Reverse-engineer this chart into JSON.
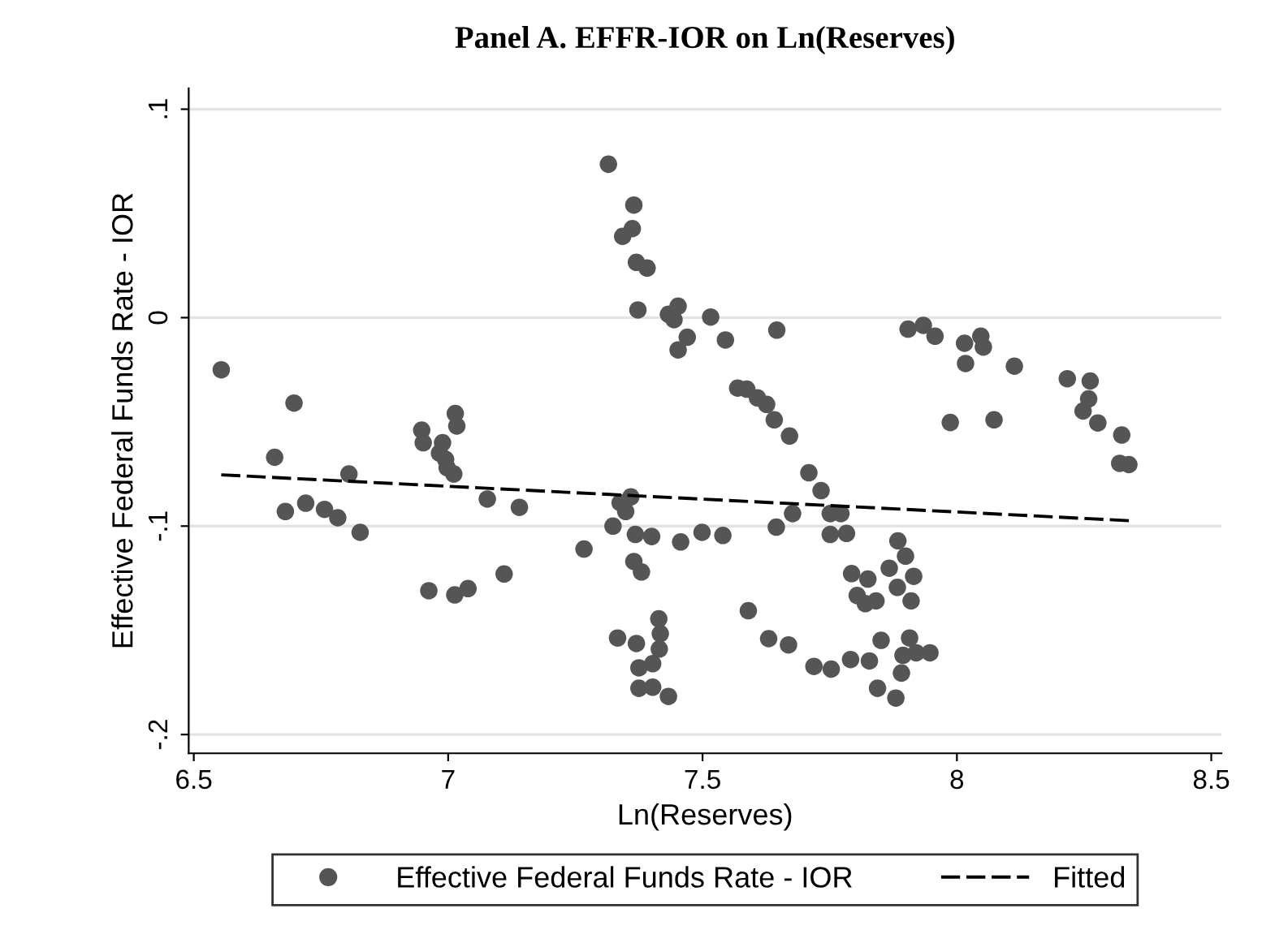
{
  "chart_data": {
    "type": "scatter",
    "title": "Panel A. EFFR-IOR on Ln(Reserves)",
    "xlabel": "Ln(Reserves)",
    "ylabel": "Effective Federal Funds Rate - IOR",
    "xlim": [
      6.49,
      8.52
    ],
    "ylim": [
      -0.209,
      0.11
    ],
    "xticks": [
      6.5,
      7,
      7.5,
      8,
      8.5
    ],
    "yticks": [
      {
        "value": 0.1,
        "label": ".1"
      },
      {
        "value": 0,
        "label": "0"
      },
      {
        "value": -0.1,
        "label": "-.1"
      },
      {
        "value": -0.2,
        "label": "-.2"
      }
    ],
    "grid": "y",
    "legend": "bottom",
    "marker": "circle",
    "series": [
      {
        "name": "Effective Federal Funds Rate - IOR",
        "type": "scatter",
        "color": "#555555",
        "x": [
          6.554,
          6.697,
          6.659,
          6.68,
          6.72,
          6.757,
          6.783,
          6.805,
          6.827,
          6.948,
          6.951,
          7.014,
          7.017,
          6.989,
          6.983,
          6.995,
          6.998,
          7.011,
          7.077,
          7.14,
          7.267,
          6.962,
          7.013,
          7.039,
          7.11,
          7.315,
          7.365,
          7.362,
          7.343,
          7.37,
          7.391,
          7.373,
          7.433,
          7.452,
          7.444,
          7.47,
          7.452,
          7.516,
          7.545,
          7.646,
          7.569,
          7.587,
          7.608,
          7.626,
          7.641,
          7.671,
          7.709,
          7.733,
          7.677,
          7.645,
          7.751,
          7.772,
          7.751,
          7.783,
          7.338,
          7.359,
          7.349,
          7.324,
          7.368,
          7.4,
          7.457,
          7.499,
          7.54,
          7.365,
          7.38,
          7.414,
          7.417,
          7.415,
          7.333,
          7.37,
          7.375,
          7.402,
          7.375,
          7.402,
          7.433,
          7.59,
          7.63,
          7.669,
          7.719,
          7.753,
          7.791,
          7.828,
          7.851,
          7.844,
          7.88,
          7.891,
          7.793,
          7.825,
          7.804,
          7.82,
          7.841,
          7.884,
          7.867,
          7.904,
          7.934,
          7.957,
          8.015,
          8.047,
          8.052,
          8.017,
          8.113,
          7.987,
          8.073,
          8.217,
          8.262,
          8.259,
          8.248,
          8.277,
          8.324,
          8.32,
          8.338,
          7.899,
          7.915,
          7.883,
          7.91,
          7.907,
          7.947,
          7.92,
          7.894
        ],
        "values": [
          -0.025,
          -0.041,
          -0.067,
          -0.093,
          -0.089,
          -0.092,
          -0.096,
          -0.075,
          -0.103,
          -0.054,
          -0.06,
          -0.046,
          -0.052,
          -0.06,
          -0.065,
          -0.068,
          -0.072,
          -0.075,
          -0.087,
          -0.091,
          -0.111,
          -0.131,
          -0.133,
          -0.13,
          -0.123,
          0.0736,
          0.054,
          0.0427,
          0.039,
          0.0265,
          0.0238,
          0.0037,
          0.0016,
          0.0055,
          -0.001,
          -0.0094,
          -0.0155,
          0.0003,
          -0.0107,
          -0.006,
          -0.0338,
          -0.0343,
          -0.0385,
          -0.0416,
          -0.049,
          -0.0568,
          -0.0744,
          -0.083,
          -0.094,
          -0.1005,
          -0.094,
          -0.094,
          -0.104,
          -0.1035,
          -0.0888,
          -0.086,
          -0.093,
          -0.1,
          -0.104,
          -0.105,
          -0.1076,
          -0.103,
          -0.1045,
          -0.117,
          -0.122,
          -0.1445,
          -0.1516,
          -0.159,
          -0.1537,
          -0.1563,
          -0.168,
          -0.166,
          -0.1778,
          -0.1773,
          -0.1817,
          -0.1406,
          -0.154,
          -0.157,
          -0.1673,
          -0.1686,
          -0.164,
          -0.1647,
          -0.1548,
          -0.1778,
          -0.1825,
          -0.1705,
          -0.1228,
          -0.1254,
          -0.1333,
          -0.1372,
          -0.1359,
          -0.1071,
          -0.1202,
          -0.0055,
          -0.0037,
          -0.0089,
          -0.0123,
          -0.0089,
          -0.0141,
          -0.022,
          -0.0233,
          -0.0503,
          -0.049,
          -0.0293,
          -0.0304,
          -0.039,
          -0.0448,
          -0.0505,
          -0.0563,
          -0.0699,
          -0.0705,
          -0.1144,
          -0.1241,
          -0.1294,
          -0.1359,
          -0.1537,
          -0.1608,
          -0.1608,
          -0.162
        ]
      },
      {
        "name": "Fitted",
        "type": "line",
        "color": "#000000",
        "line_style": "dashed",
        "marker": "none",
        "x": [
          6.554,
          8.338
        ],
        "values": [
          -0.0754,
          -0.0974
        ]
      }
    ]
  }
}
